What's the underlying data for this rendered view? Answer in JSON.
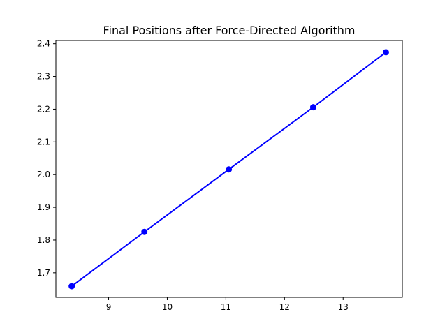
{
  "chart_data": {
    "type": "line",
    "title": "Final Positions after Force-Directed Algorithm",
    "xlabel": "",
    "ylabel": "",
    "xlim": [
      8.1,
      14.01
    ],
    "ylim": [
      1.625,
      2.41
    ],
    "xticks": [
      9,
      10,
      11,
      12,
      13
    ],
    "yticks": [
      1.7,
      1.8,
      1.9,
      2.0,
      2.1,
      2.2,
      2.3,
      2.4
    ],
    "xtick_labels": [
      "9",
      "10",
      "11",
      "12",
      "13"
    ],
    "ytick_labels": [
      "1.7",
      "1.8",
      "1.9",
      "2.0",
      "2.1",
      "2.2",
      "2.3",
      "2.4"
    ],
    "grid": false,
    "legend": "none",
    "series": [
      {
        "x": [
          8.37,
          9.61,
          11.05,
          12.49,
          13.73
        ],
        "y": [
          1.659,
          1.825,
          2.016,
          2.206,
          2.374
        ],
        "color": "#0000ff",
        "marker": "circle"
      }
    ]
  }
}
